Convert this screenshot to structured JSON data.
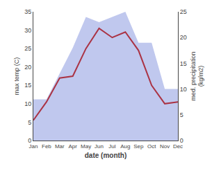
{
  "chart_data": {
    "type": "line",
    "categories": [
      "Jan",
      "Feb",
      "Mar",
      "Apr",
      "May",
      "Jun",
      "Jul",
      "Aug",
      "Sep",
      "Oct",
      "Nov",
      "Dec"
    ],
    "xlabel": "date (month)",
    "ylabel": "max temp (C)",
    "y2label": "med. precipitation\n(kg/m2)",
    "series": [
      {
        "type": "area",
        "axis": "y2",
        "color": "#c0c8ee",
        "values": [
          8.0,
          8.0,
          13.0,
          18.0,
          24.0,
          23.0,
          24.0,
          25.0,
          19.0,
          19.0,
          10.0,
          10.0
        ]
      },
      {
        "type": "line",
        "color": "#aa3344",
        "values": [
          5.5,
          10.5,
          17.0,
          17.5,
          25.0,
          30.5,
          28.0,
          29.5,
          24.5,
          15.0,
          10.0,
          10.5
        ]
      }
    ],
    "ylim": [
      0,
      35
    ],
    "yticks": [
      0,
      5,
      10,
      15,
      20,
      25,
      30,
      35
    ],
    "y2lim": [
      0,
      25
    ],
    "y2ticks": [
      0,
      5,
      10,
      15,
      20,
      25
    ],
    "grid": false
  }
}
